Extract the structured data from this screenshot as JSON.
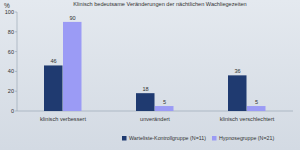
{
  "chart_data": {
    "type": "bar",
    "title": "Klinisch bedeutsame Veränderungen der nächtlichen Wachliegezeiten",
    "ylabel": "%",
    "categories": [
      "klinisch verbessert",
      "unverändert",
      "klinisch verschlechtert"
    ],
    "series": [
      {
        "name": "Warteliste-Kontrollgruppe (N=11)",
        "color": "#1f3a70",
        "values": [
          46,
          18,
          36
        ]
      },
      {
        "name": "Hypnosegruppe (N=21)",
        "color": "#9b9bf5",
        "values": [
          90,
          5,
          5
        ]
      }
    ],
    "ylim": [
      0,
      100
    ],
    "yticks": [
      0,
      20,
      40,
      60,
      80,
      100
    ],
    "grid": false,
    "legend": "bottom",
    "data_labels": true
  }
}
